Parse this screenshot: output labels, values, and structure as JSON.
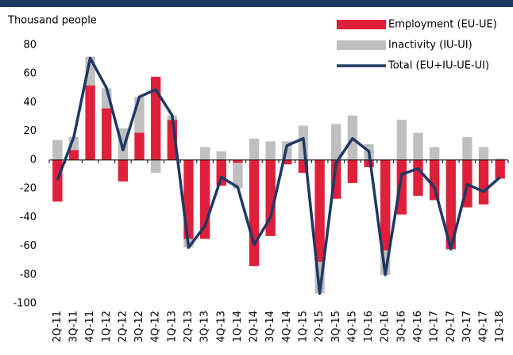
{
  "chart_data": {
    "type": "bar",
    "y_label": "Thousand people",
    "categories": [
      "2Q-11",
      "3Q-11",
      "4Q-11",
      "1Q-12",
      "2Q-12",
      "3Q-12",
      "4Q-12",
      "1Q-13",
      "2Q-13",
      "3Q-13",
      "4Q-13",
      "1Q-14",
      "2Q-14",
      "3Q-14",
      "4Q-14",
      "1Q-15",
      "2Q-15",
      "3Q-15",
      "4Q-15",
      "1Q-16",
      "2Q-16",
      "3Q-16",
      "4Q-16",
      "1Q-17",
      "2Q-17",
      "3Q-17",
      "4Q-17",
      "1Q-18"
    ],
    "series": [
      {
        "name": "Employment (EU-UE)",
        "type": "bar",
        "color": "#e0203a",
        "values": [
          -29,
          7,
          52,
          36,
          -15,
          19,
          58,
          28,
          -55,
          -55,
          -18,
          -2,
          -74,
          -53,
          -3,
          -9,
          -71,
          -27,
          -16,
          -5,
          -63,
          -38,
          -25,
          -28,
          -62,
          -33,
          -31,
          -13
        ]
      },
      {
        "name": "Inactivity (IU-UI)",
        "type": "bar",
        "color": "#bfbfbf",
        "values": [
          14,
          9,
          20,
          14,
          22,
          25,
          -9,
          3,
          -6,
          9,
          6,
          -18,
          15,
          13,
          13,
          24,
          -22,
          25,
          31,
          11,
          -17,
          28,
          19,
          9,
          -1,
          16,
          9,
          1
        ]
      },
      {
        "name": "Total (EU+IU-UE-UI)",
        "type": "line",
        "color": "#1f3864",
        "values": [
          -14,
          16,
          71,
          50,
          7,
          44,
          49,
          31,
          -61,
          -46,
          -12,
          -19,
          -59,
          -40,
          10,
          15,
          -93,
          -2,
          15,
          6,
          -80,
          -10,
          -6,
          -19,
          -62,
          -17,
          -22,
          -12
        ]
      }
    ],
    "stacked": true,
    "ylim": [
      -100,
      80
    ],
    "yticks": [
      -100,
      -80,
      -60,
      -40,
      -20,
      0,
      20,
      40,
      60,
      80
    ]
  }
}
